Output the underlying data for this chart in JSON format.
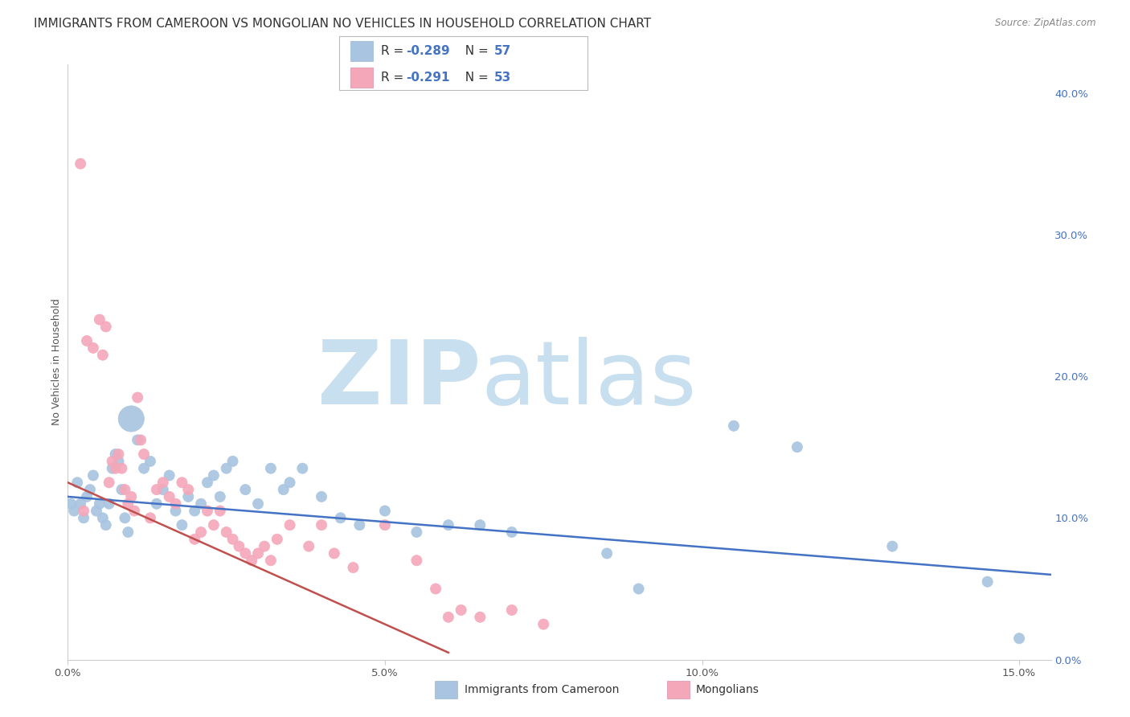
{
  "title": "IMMIGRANTS FROM CAMEROON VS MONGOLIAN NO VEHICLES IN HOUSEHOLD CORRELATION CHART",
  "source": "Source: ZipAtlas.com",
  "xlabel_vals": [
    0.0,
    5.0,
    10.0,
    15.0
  ],
  "ylabel_right_vals": [
    0.0,
    10.0,
    20.0,
    30.0,
    40.0
  ],
  "ylabel_label": "No Vehicles in Household",
  "xlim": [
    0.0,
    15.5
  ],
  "ylim": [
    0.0,
    42.0
  ],
  "series": [
    {
      "name": "Immigrants from Cameroon",
      "R": -0.289,
      "N": 57,
      "color": "#a8c4e0",
      "edge_color": "#7aadd4",
      "line_color": "#4472c4",
      "x": [
        0.05,
        0.1,
        0.15,
        0.2,
        0.25,
        0.3,
        0.35,
        0.4,
        0.45,
        0.5,
        0.55,
        0.6,
        0.65,
        0.7,
        0.75,
        0.8,
        0.85,
        0.9,
        0.95,
        1.0,
        1.1,
        1.2,
        1.3,
        1.4,
        1.5,
        1.6,
        1.7,
        1.8,
        1.9,
        2.0,
        2.1,
        2.2,
        2.3,
        2.4,
        2.5,
        2.6,
        2.8,
        3.0,
        3.2,
        3.4,
        3.5,
        3.7,
        4.0,
        4.3,
        4.6,
        5.0,
        5.5,
        6.0,
        6.5,
        7.0,
        8.5,
        9.0,
        10.5,
        11.5,
        13.0,
        14.5,
        15.0
      ],
      "y": [
        11.0,
        10.5,
        12.5,
        11.0,
        10.0,
        11.5,
        12.0,
        13.0,
        10.5,
        11.0,
        10.0,
        9.5,
        11.0,
        13.5,
        14.5,
        14.0,
        12.0,
        10.0,
        9.0,
        17.0,
        15.5,
        13.5,
        14.0,
        11.0,
        12.0,
        13.0,
        10.5,
        9.5,
        11.5,
        10.5,
        11.0,
        12.5,
        13.0,
        11.5,
        13.5,
        14.0,
        12.0,
        11.0,
        13.5,
        12.0,
        12.5,
        13.5,
        11.5,
        10.0,
        9.5,
        10.5,
        9.0,
        9.5,
        9.5,
        9.0,
        7.5,
        5.0,
        16.5,
        15.0,
        8.0,
        5.5,
        1.5
      ],
      "size": [
        20,
        20,
        20,
        20,
        20,
        20,
        20,
        20,
        20,
        20,
        20,
        20,
        20,
        20,
        20,
        20,
        20,
        20,
        20,
        120,
        20,
        20,
        20,
        20,
        20,
        20,
        20,
        20,
        20,
        20,
        20,
        20,
        20,
        20,
        20,
        20,
        20,
        20,
        20,
        20,
        20,
        20,
        20,
        20,
        20,
        20,
        20,
        20,
        20,
        20,
        20,
        20,
        20,
        20,
        20,
        20,
        20
      ],
      "reg_x0": 0.0,
      "reg_x1": 15.5,
      "reg_y0": 11.5,
      "reg_y1": 6.0
    },
    {
      "name": "Mongolians",
      "R": -0.291,
      "N": 53,
      "color": "#f4a7b9",
      "edge_color": "#e8809a",
      "line_color": "#c0504d",
      "x": [
        0.2,
        0.3,
        0.4,
        0.5,
        0.55,
        0.6,
        0.65,
        0.7,
        0.75,
        0.8,
        0.85,
        0.9,
        0.95,
        1.0,
        1.05,
        1.1,
        1.15,
        1.2,
        1.3,
        1.4,
        1.5,
        1.6,
        1.7,
        1.8,
        1.9,
        2.0,
        2.1,
        2.2,
        2.3,
        2.4,
        2.5,
        2.6,
        2.7,
        2.8,
        2.9,
        3.0,
        3.1,
        3.2,
        3.3,
        3.5,
        3.8,
        4.0,
        4.2,
        4.5,
        5.0,
        5.5,
        5.8,
        6.0,
        6.2,
        6.5,
        7.0,
        7.5,
        0.25
      ],
      "y": [
        35.0,
        22.5,
        22.0,
        24.0,
        21.5,
        23.5,
        12.5,
        14.0,
        13.5,
        14.5,
        13.5,
        12.0,
        11.0,
        11.5,
        10.5,
        18.5,
        15.5,
        14.5,
        10.0,
        12.0,
        12.5,
        11.5,
        11.0,
        12.5,
        12.0,
        8.5,
        9.0,
        10.5,
        9.5,
        10.5,
        9.0,
        8.5,
        8.0,
        7.5,
        7.0,
        7.5,
        8.0,
        7.0,
        8.5,
        9.5,
        8.0,
        9.5,
        7.5,
        6.5,
        9.5,
        7.0,
        5.0,
        3.0,
        3.5,
        3.0,
        3.5,
        2.5,
        10.5
      ],
      "size": [
        20,
        20,
        20,
        20,
        20,
        20,
        20,
        20,
        20,
        20,
        20,
        20,
        20,
        20,
        20,
        20,
        20,
        20,
        20,
        20,
        20,
        20,
        20,
        20,
        20,
        20,
        20,
        20,
        20,
        20,
        20,
        20,
        20,
        20,
        20,
        20,
        20,
        20,
        20,
        20,
        20,
        20,
        20,
        20,
        20,
        20,
        20,
        20,
        20,
        20,
        20,
        20,
        20
      ],
      "reg_x0": 0.0,
      "reg_x1": 6.0,
      "reg_y0": 12.5,
      "reg_y1": 0.5
    }
  ],
  "watermark_zip": "ZIP",
  "watermark_atlas": "atlas",
  "watermark_color_zip": "#c8dff0",
  "watermark_color_atlas": "#c8dff0",
  "background_color": "#ffffff",
  "grid_color": "#d0d8e8",
  "title_fontsize": 11,
  "axis_label_fontsize": 9,
  "tick_fontsize": 9.5
}
